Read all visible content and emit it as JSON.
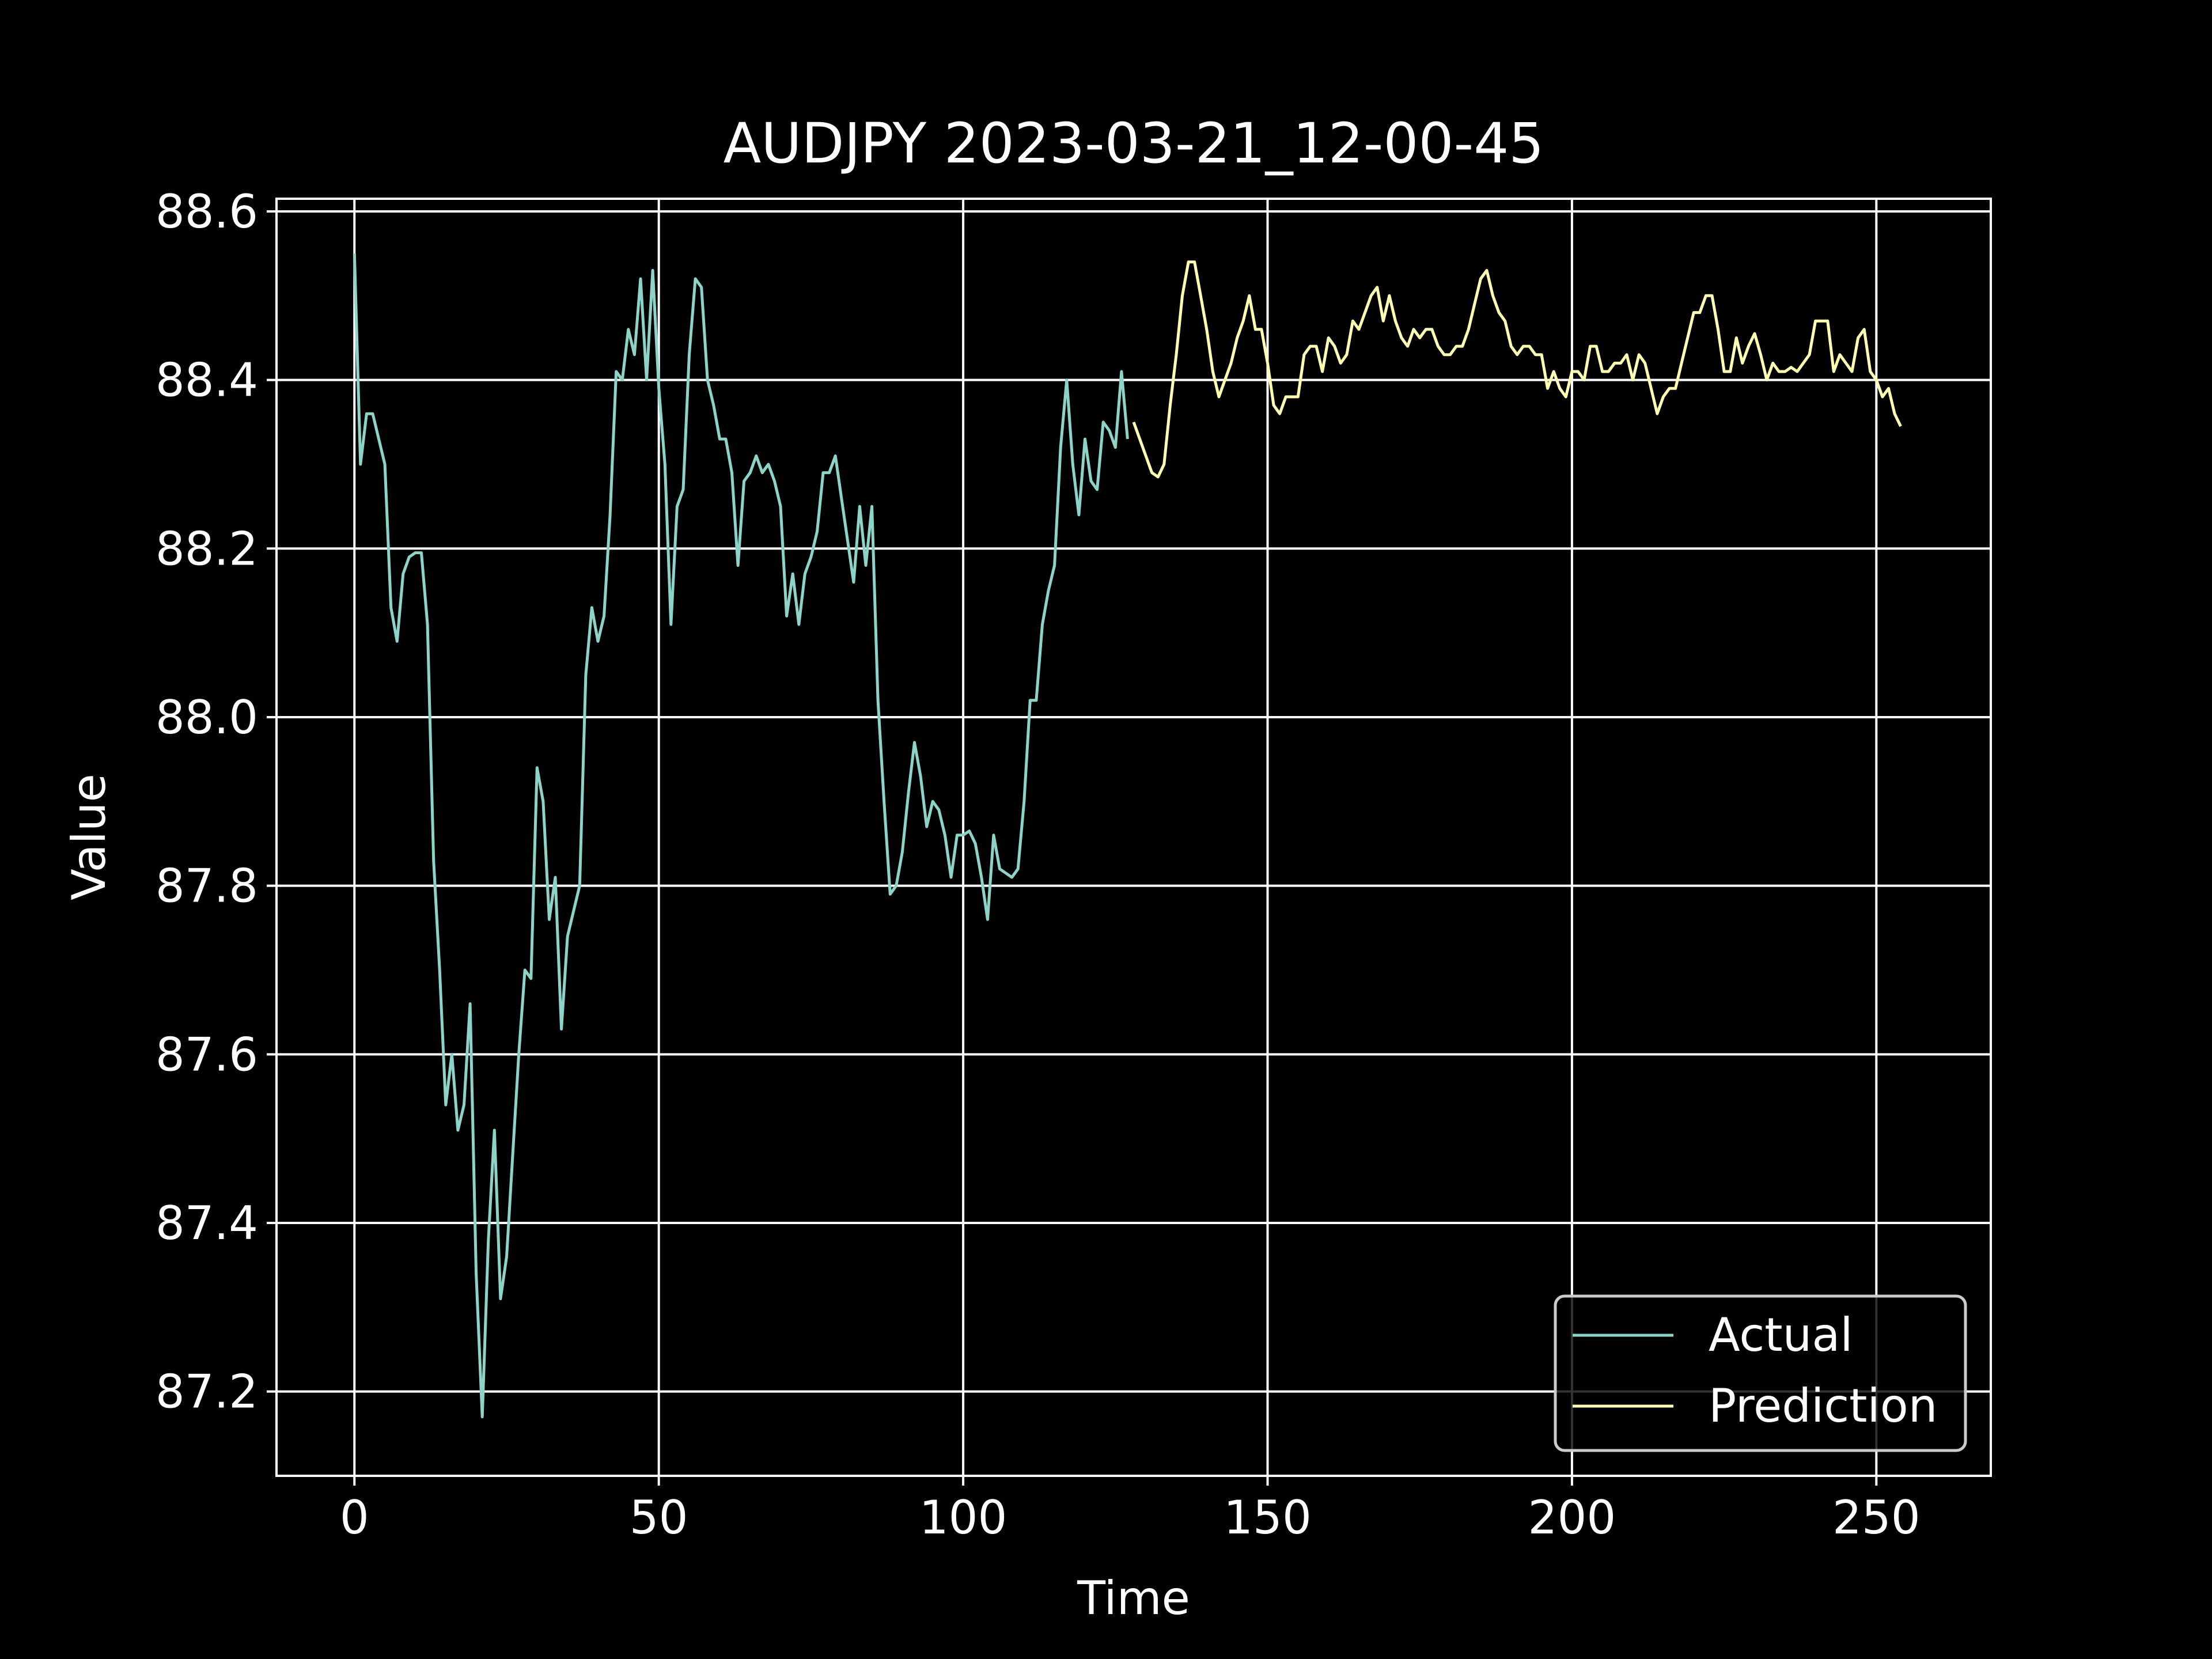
{
  "chart_data": {
    "type": "line",
    "title": "AUDJPY 2023-03-21_12-00-45",
    "xlabel": "Time",
    "ylabel": "Value",
    "xlim": [
      -12.8,
      268.8
    ],
    "ylim": [
      87.1,
      88.615
    ],
    "xticks": [
      0,
      50,
      100,
      150,
      200,
      250
    ],
    "yticks": [
      87.2,
      87.4,
      87.6,
      87.8,
      88.0,
      88.2,
      88.4,
      88.6
    ],
    "xtick_labels": [
      "0",
      "50",
      "100",
      "150",
      "200",
      "250"
    ],
    "ytick_labels": [
      "87.2",
      "87.4",
      "87.6",
      "87.8",
      "88.0",
      "88.2",
      "88.4",
      "88.6"
    ],
    "grid": true,
    "legend": "lower-right",
    "series": [
      {
        "name": "Actual",
        "color": "#8dd3c7",
        "x_start": 0,
        "values": [
          88.55,
          88.3,
          88.36,
          88.36,
          88.33,
          88.3,
          88.13,
          88.09,
          88.17,
          88.19,
          88.195,
          88.195,
          88.11,
          87.83,
          87.7,
          87.54,
          87.6,
          87.51,
          87.54,
          87.66,
          87.34,
          87.17,
          87.38,
          87.51,
          87.31,
          87.36,
          87.48,
          87.6,
          87.7,
          87.69,
          87.94,
          87.9,
          87.76,
          87.81,
          87.63,
          87.74,
          87.77,
          87.8,
          88.05,
          88.13,
          88.09,
          88.12,
          88.24,
          88.41,
          88.4,
          88.46,
          88.43,
          88.52,
          88.4,
          88.53,
          88.39,
          88.3,
          88.11,
          88.25,
          88.27,
          88.43,
          88.52,
          88.51,
          88.4,
          88.37,
          88.33,
          88.33,
          88.29,
          88.18,
          88.28,
          88.29,
          88.31,
          88.29,
          88.3,
          88.28,
          88.25,
          88.12,
          88.17,
          88.11,
          88.17,
          88.19,
          88.22,
          88.29,
          88.29,
          88.31,
          88.26,
          88.21,
          88.16,
          88.25,
          88.18,
          88.25,
          88.02,
          87.9,
          87.79,
          87.8,
          87.84,
          87.91,
          87.97,
          87.93,
          87.87,
          87.9,
          87.89,
          87.86,
          87.81,
          87.86,
          87.86,
          87.865,
          87.85,
          87.81,
          87.76,
          87.86,
          87.82,
          87.815,
          87.81,
          87.82,
          87.9,
          88.02,
          88.02,
          88.11,
          88.15,
          88.18,
          88.32,
          88.4,
          88.3,
          88.24,
          88.33,
          88.28,
          88.27,
          88.35,
          88.34,
          88.32,
          88.41,
          88.33
        ]
      },
      {
        "name": "Prediction",
        "color": "#ffffb3",
        "x_start": 128,
        "values": [
          88.35,
          88.33,
          88.31,
          88.29,
          88.285,
          88.3,
          88.37,
          88.43,
          88.5,
          88.54,
          88.54,
          88.5,
          88.46,
          88.41,
          88.38,
          88.4,
          88.42,
          88.45,
          88.47,
          88.5,
          88.46,
          88.46,
          88.42,
          88.37,
          88.36,
          88.38,
          88.38,
          88.38,
          88.43,
          88.44,
          88.44,
          88.41,
          88.45,
          88.44,
          88.42,
          88.43,
          88.47,
          88.46,
          88.48,
          88.5,
          88.51,
          88.47,
          88.5,
          88.47,
          88.45,
          88.44,
          88.46,
          88.45,
          88.46,
          88.46,
          88.44,
          88.43,
          88.43,
          88.44,
          88.44,
          88.46,
          88.49,
          88.52,
          88.53,
          88.5,
          88.48,
          88.47,
          88.44,
          88.43,
          88.44,
          88.44,
          88.43,
          88.43,
          88.39,
          88.41,
          88.39,
          88.38,
          88.41,
          88.41,
          88.4,
          88.44,
          88.44,
          88.41,
          88.41,
          88.42,
          88.42,
          88.43,
          88.4,
          88.43,
          88.42,
          88.39,
          88.36,
          88.38,
          88.39,
          88.39,
          88.42,
          88.45,
          88.48,
          88.48,
          88.5,
          88.5,
          88.46,
          88.41,
          88.41,
          88.45,
          88.42,
          88.44,
          88.455,
          88.43,
          88.4,
          88.42,
          88.41,
          88.41,
          88.415,
          88.41,
          88.42,
          88.43,
          88.47,
          88.47,
          88.47,
          88.41,
          88.43,
          88.42,
          88.41,
          88.45,
          88.46,
          88.41,
          88.4,
          88.38,
          88.39,
          88.36,
          88.345
        ]
      }
    ]
  }
}
